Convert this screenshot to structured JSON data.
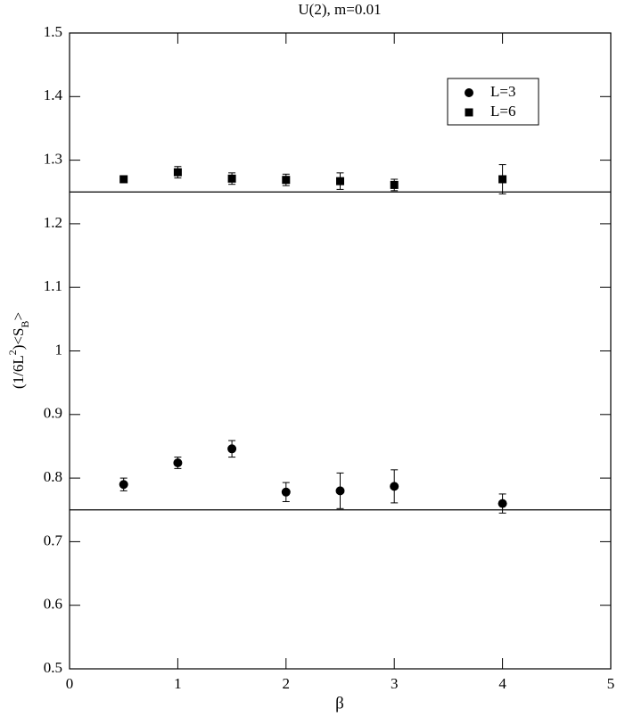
{
  "chart_data": {
    "type": "scatter",
    "title": "U(2), m=0.01",
    "x_label": "β",
    "y_label": [
      {
        "text": "(1/6L",
        "script": "normal"
      },
      {
        "text": "2",
        "script": "super"
      },
      {
        "text": ")<S",
        "script": "normal"
      },
      {
        "text": "B",
        "script": "sub"
      },
      {
        "text": ">",
        "script": "normal"
      }
    ],
    "xlim": [
      0,
      5
    ],
    "xticks": [
      0,
      1,
      2,
      3,
      4,
      5
    ],
    "ylim": [
      0.5,
      1.5
    ],
    "yticks": [
      0.5,
      0.6,
      0.7,
      0.8,
      0.9,
      1,
      1.1,
      1.2,
      1.3,
      1.4,
      1.5
    ],
    "hlines": [
      0.75,
      1.25
    ],
    "legend": "upper right",
    "series": [
      {
        "name": "L=3",
        "marker": "circle",
        "color": "#000000",
        "x": [
          0.5,
          1,
          1.5,
          2,
          2.5,
          3,
          4
        ],
        "values": [
          0.79,
          0.824,
          0.846,
          0.778,
          0.78,
          0.787,
          0.76
        ],
        "errors": [
          0.01,
          0.009,
          0.013,
          0.015,
          0.028,
          0.026,
          0.015
        ]
      },
      {
        "name": "L=6",
        "marker": "square",
        "color": "#000000",
        "x": [
          0.5,
          1,
          1.5,
          2,
          2.5,
          3,
          4
        ],
        "values": [
          1.27,
          1.281,
          1.271,
          1.269,
          1.267,
          1.261,
          1.27
        ],
        "errors": [
          0.004,
          0.009,
          0.009,
          0.009,
          0.013,
          0.009,
          0.023
        ]
      }
    ]
  }
}
